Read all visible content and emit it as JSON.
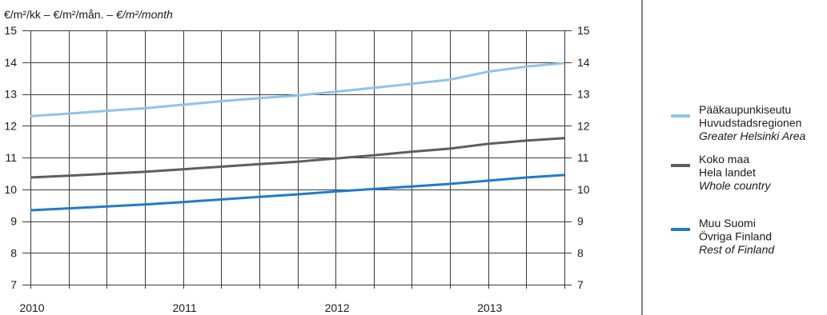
{
  "chart_data": {
    "type": "line",
    "ylabel_parts": [
      {
        "text": "€/m²/kk – €/m²/mån. – ",
        "italic": false
      },
      {
        "text": "€/m²/month",
        "italic": true
      }
    ],
    "xlim": [
      2010,
      2013.5
    ],
    "ylim": [
      7,
      15
    ],
    "yticks": [
      7,
      8,
      9,
      10,
      11,
      12,
      13,
      14,
      15
    ],
    "y_axis_mirrored": true,
    "xticks": [
      2010,
      2011,
      2012,
      2013
    ],
    "xtick_labels": [
      "2010",
      "2011",
      "2012",
      "2013"
    ],
    "grid": true,
    "x_grid_interval": 0.25,
    "legend_placement": "right",
    "x": [
      2010,
      2010.25,
      2010.5,
      2010.75,
      2011,
      2011.25,
      2011.5,
      2011.75,
      2012,
      2012.25,
      2012.5,
      2012.75,
      2013,
      2013.25,
      2013.5
    ],
    "series": [
      {
        "name": "Pääkaupunkiseutu",
        "name_sv": "Huvudstadsregionen",
        "name_en": "Greater Helsinki Area",
        "color": "#8dc4ea",
        "values": [
          12.3,
          12.38,
          12.47,
          12.55,
          12.66,
          12.77,
          12.87,
          12.95,
          13.07,
          13.19,
          13.32,
          13.45,
          13.7,
          13.86,
          13.97
        ]
      },
      {
        "name": "Koko maa",
        "name_sv": "Hela landet",
        "name_en": "Whole country",
        "color": "#5e5e5e",
        "values": [
          10.37,
          10.43,
          10.49,
          10.55,
          10.63,
          10.71,
          10.79,
          10.87,
          10.97,
          11.07,
          11.18,
          11.28,
          11.43,
          11.53,
          11.61
        ]
      },
      {
        "name": "Muu Suomi",
        "name_sv": "Övriga Finland",
        "name_en": "Rest of Finland",
        "color": "#1f7bcc",
        "values": [
          9.34,
          9.4,
          9.46,
          9.52,
          9.6,
          9.68,
          9.76,
          9.84,
          9.93,
          10.01,
          10.09,
          10.17,
          10.27,
          10.37,
          10.45
        ]
      }
    ]
  }
}
